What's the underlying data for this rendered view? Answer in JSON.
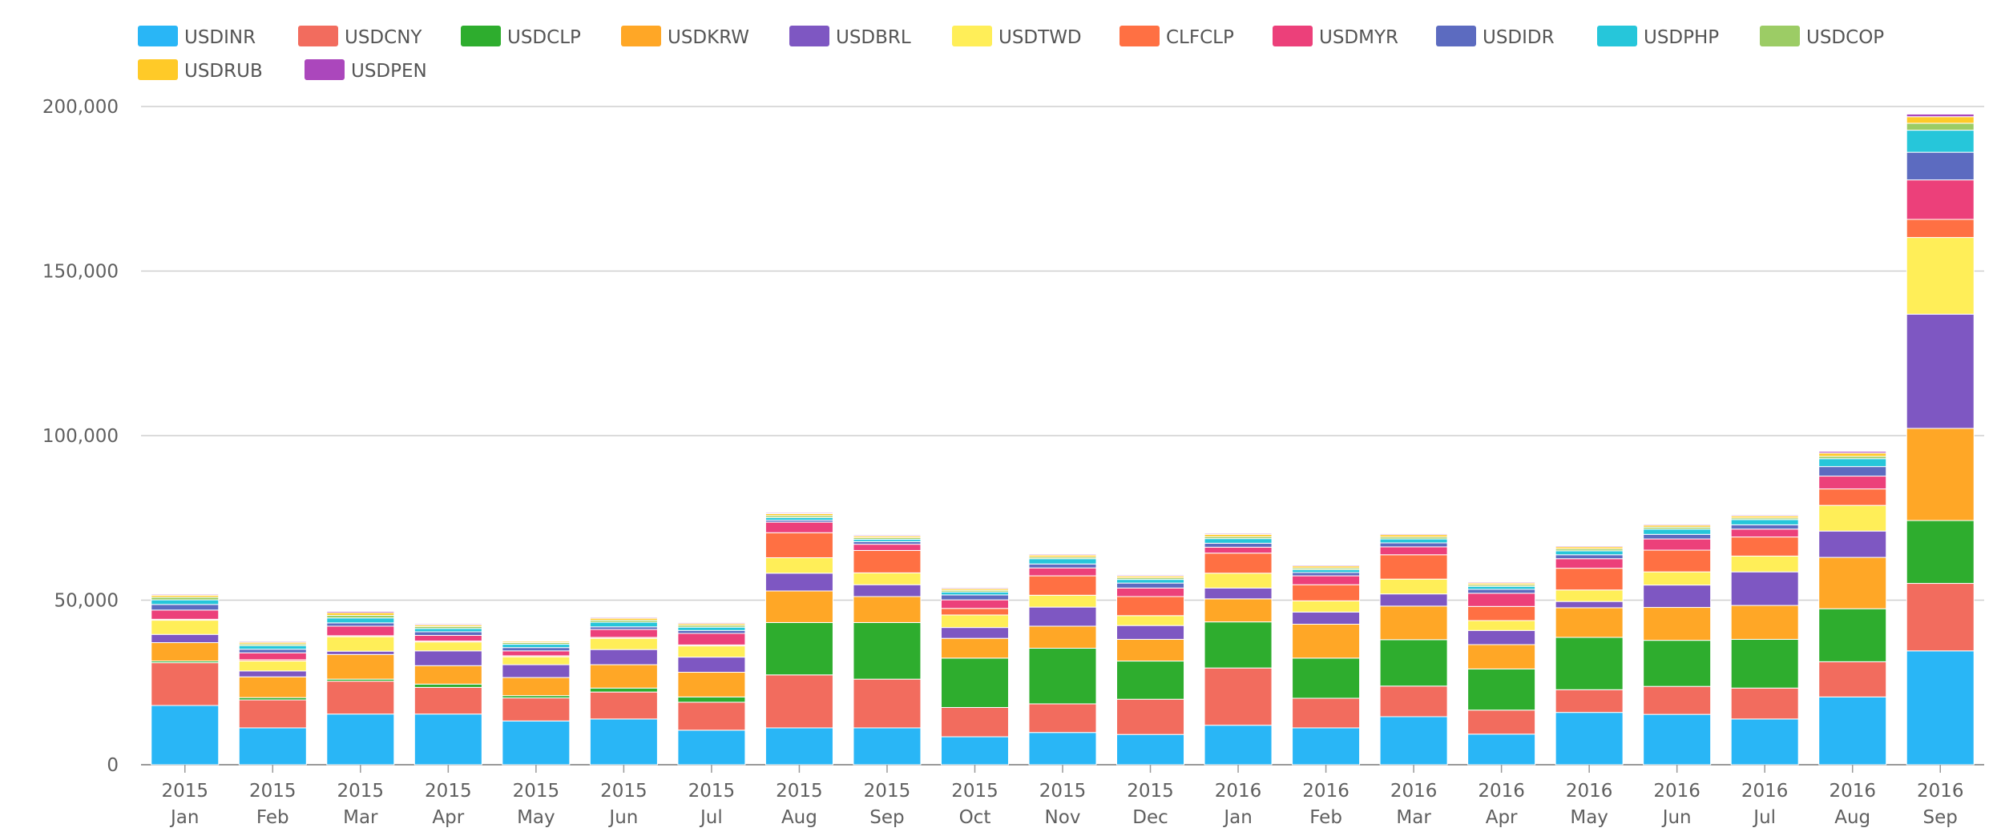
{
  "chart_data": {
    "type": "bar",
    "stacked": true,
    "legend_position": "top-left",
    "grid": true,
    "ylim": [
      0,
      200000
    ],
    "y_ticks": [
      "0",
      "50,000",
      "100,000",
      "150,000",
      "200,000"
    ],
    "categories": [
      {
        "year": "2015",
        "month": "Jan"
      },
      {
        "year": "2015",
        "month": "Feb"
      },
      {
        "year": "2015",
        "month": "Mar"
      },
      {
        "year": "2015",
        "month": "Apr"
      },
      {
        "year": "2015",
        "month": "May"
      },
      {
        "year": "2015",
        "month": "Jun"
      },
      {
        "year": "2015",
        "month": "Jul"
      },
      {
        "year": "2015",
        "month": "Aug"
      },
      {
        "year": "2015",
        "month": "Sep"
      },
      {
        "year": "2015",
        "month": "Oct"
      },
      {
        "year": "2015",
        "month": "Nov"
      },
      {
        "year": "2015",
        "month": "Dec"
      },
      {
        "year": "2016",
        "month": "Jan"
      },
      {
        "year": "2016",
        "month": "Feb"
      },
      {
        "year": "2016",
        "month": "Mar"
      },
      {
        "year": "2016",
        "month": "Apr"
      },
      {
        "year": "2016",
        "month": "May"
      },
      {
        "year": "2016",
        "month": "Jun"
      },
      {
        "year": "2016",
        "month": "Jul"
      },
      {
        "year": "2016",
        "month": "Aug"
      },
      {
        "year": "2016",
        "month": "Sep"
      }
    ],
    "series": [
      {
        "name": "USDINR",
        "color": "#29b6f6",
        "values": [
          18000,
          11200,
          15400,
          15400,
          13300,
          13900,
          10500,
          11200,
          11200,
          8500,
          9800,
          9200,
          12000,
          11200,
          14600,
          9300,
          15900,
          15300,
          13900,
          20600,
          34600
        ]
      },
      {
        "name": "USDCNY",
        "color": "#f26c5e",
        "values": [
          13000,
          8500,
          10000,
          8100,
          7000,
          8200,
          8500,
          16100,
          14800,
          8900,
          8700,
          10700,
          17400,
          9000,
          9300,
          7300,
          6900,
          8500,
          9400,
          10700,
          20500
        ]
      },
      {
        "name": "USDCLP",
        "color": "#2ead2e",
        "values": [
          500,
          700,
          600,
          1000,
          700,
          1200,
          1600,
          15900,
          17200,
          15000,
          16900,
          11600,
          14000,
          12200,
          14100,
          12500,
          15900,
          14000,
          14800,
          16100,
          19100
        ]
      },
      {
        "name": "USDKRW",
        "color": "#ffa726",
        "values": [
          5600,
          6300,
          7500,
          5600,
          5500,
          7100,
          7500,
          9600,
          7900,
          6000,
          6700,
          6600,
          7000,
          10300,
          10200,
          7400,
          9000,
          10000,
          10300,
          15600,
          28000
        ]
      },
      {
        "name": "USDBRL",
        "color": "#7e57c2",
        "values": [
          2500,
          1800,
          1000,
          4500,
          3900,
          4600,
          4600,
          5400,
          3600,
          3300,
          5800,
          4200,
          3300,
          3700,
          3700,
          4300,
          1900,
          6800,
          10200,
          8000,
          34700
        ]
      },
      {
        "name": "USDTWD",
        "color": "#ffee58",
        "values": [
          4300,
          3000,
          4400,
          2700,
          2400,
          3400,
          3400,
          4700,
          3600,
          3800,
          3600,
          3000,
          4500,
          3400,
          4500,
          3000,
          3500,
          4000,
          4800,
          7800,
          23300
        ]
      },
      {
        "name": "CLFCLP",
        "color": "#ff7043",
        "values": [
          300,
          400,
          300,
          300,
          300,
          300,
          300,
          7600,
          6800,
          2000,
          5900,
          5800,
          6100,
          4900,
          7400,
          4300,
          6600,
          6600,
          5800,
          5000,
          5500
        ]
      },
      {
        "name": "USDMYR",
        "color": "#ec407a",
        "values": [
          2800,
          2100,
          2900,
          1700,
          1500,
          2400,
          3500,
          3200,
          1900,
          2600,
          2400,
          2600,
          1800,
          2700,
          2400,
          4000,
          2900,
          3400,
          2400,
          3900,
          12000
        ]
      },
      {
        "name": "USDIDR",
        "color": "#5c6bc0",
        "values": [
          1700,
          1100,
          1000,
          1100,
          1000,
          800,
          900,
          600,
          800,
          1500,
          1200,
          1500,
          1200,
          1000,
          1200,
          1200,
          1200,
          1400,
          1300,
          2900,
          8400
        ]
      },
      {
        "name": "USDPHP",
        "color": "#26c6da",
        "values": [
          1400,
          1100,
          1500,
          1000,
          1000,
          1400,
          1000,
          800,
          700,
          900,
          1600,
          1100,
          1400,
          900,
          1200,
          900,
          1200,
          1600,
          1600,
          2400,
          6700
        ]
      },
      {
        "name": "USDCOP",
        "color": "#9ccc65",
        "values": [
          800,
          500,
          800,
          600,
          500,
          600,
          600,
          600,
          500,
          500,
          500,
          500,
          600,
          500,
          600,
          500,
          600,
          600,
          500,
          700,
          2100
        ]
      },
      {
        "name": "USDRUB",
        "color": "#ffca28",
        "values": [
          600,
          500,
          800,
          500,
          400,
          600,
          500,
          600,
          500,
          500,
          600,
          500,
          700,
          600,
          700,
          500,
          600,
          600,
          600,
          1000,
          2000
        ]
      },
      {
        "name": "USDPEN",
        "color": "#ab47bc",
        "values": [
          300,
          300,
          400,
          300,
          200,
          300,
          300,
          300,
          300,
          300,
          300,
          300,
          300,
          300,
          300,
          300,
          300,
          300,
          300,
          500,
          800
        ]
      }
    ]
  }
}
